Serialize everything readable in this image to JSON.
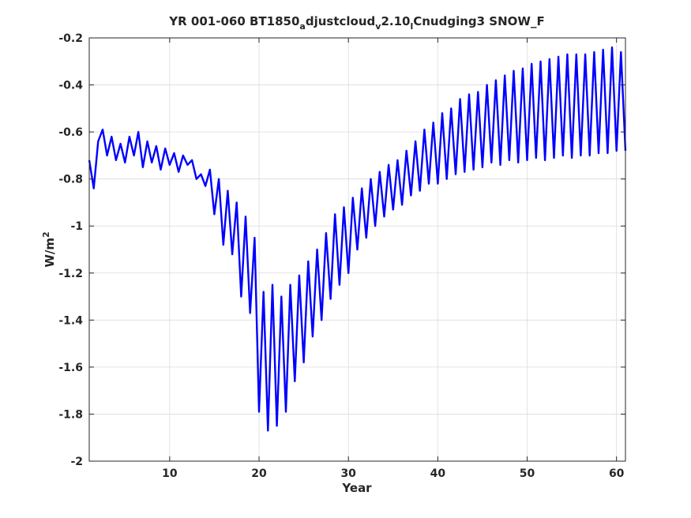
{
  "chart_data": {
    "type": "line",
    "title_parts": [
      "YR 001-060 BT1850",
      "a",
      "djustcloud",
      "v",
      "2.10",
      "l",
      "Cnudging3 SNOW_F"
    ],
    "xlabel": "Year",
    "ylabel_parts": [
      "W/m",
      "2"
    ],
    "xlim": [
      1,
      61
    ],
    "ylim": [
      -2,
      -0.2
    ],
    "xticks": [
      10,
      20,
      30,
      40,
      50,
      60
    ],
    "yticks": [
      -2,
      -1.8,
      -1.6,
      -1.4,
      -1.2,
      -1,
      -0.8,
      -0.6,
      -0.4,
      -0.2
    ],
    "grid": true,
    "series_color": "#0000ff",
    "series": [
      {
        "x": [
          1.0,
          1.5,
          2.0,
          2.5,
          3.0,
          3.5,
          4.0,
          4.5,
          5.0,
          5.5,
          6.0,
          6.5,
          7.0,
          7.5,
          8.0,
          8.5,
          9.0,
          9.5,
          10.0,
          10.5,
          11.0,
          11.5,
          12.0,
          12.5,
          13.0,
          13.5,
          14.0,
          14.5,
          15.0,
          15.5,
          16.0,
          16.5,
          17.0,
          17.5,
          18.0,
          18.5,
          19.0,
          19.5,
          20.0,
          20.5,
          21.0,
          21.5,
          22.0,
          22.5,
          23.0,
          23.5,
          24.0,
          24.5,
          25.0,
          25.5,
          26.0,
          26.5,
          27.0,
          27.5,
          28.0,
          28.5,
          29.0,
          29.5,
          30.0,
          30.5,
          31.0,
          31.5,
          32.0,
          32.5,
          33.0,
          33.5,
          34.0,
          34.5,
          35.0,
          35.5,
          36.0,
          36.5,
          37.0,
          37.5,
          38.0,
          38.5,
          39.0,
          39.5,
          40.0,
          40.5,
          41.0,
          41.5,
          42.0,
          42.5,
          43.0,
          43.5,
          44.0,
          44.5,
          45.0,
          45.5,
          46.0,
          46.5,
          47.0,
          47.5,
          48.0,
          48.5,
          49.0,
          49.5,
          50.0,
          50.5,
          51.0,
          51.5,
          52.0,
          52.5,
          53.0,
          53.5,
          54.0,
          54.5,
          55.0,
          55.5,
          56.0,
          56.5,
          57.0,
          57.5,
          58.0,
          58.5,
          59.0,
          59.5,
          60.0,
          60.5,
          61.0
        ],
        "y": [
          -0.72,
          -0.84,
          -0.64,
          -0.59,
          -0.7,
          -0.62,
          -0.72,
          -0.65,
          -0.73,
          -0.62,
          -0.7,
          -0.6,
          -0.75,
          -0.64,
          -0.73,
          -0.66,
          -0.76,
          -0.67,
          -0.74,
          -0.69,
          -0.77,
          -0.7,
          -0.74,
          -0.72,
          -0.8,
          -0.78,
          -0.83,
          -0.76,
          -0.95,
          -0.8,
          -1.08,
          -0.85,
          -1.12,
          -0.9,
          -1.3,
          -0.96,
          -1.37,
          -1.05,
          -1.79,
          -1.28,
          -1.87,
          -1.25,
          -1.85,
          -1.3,
          -1.79,
          -1.25,
          -1.66,
          -1.21,
          -1.58,
          -1.15,
          -1.47,
          -1.1,
          -1.4,
          -1.03,
          -1.31,
          -0.95,
          -1.25,
          -0.92,
          -1.2,
          -0.88,
          -1.1,
          -0.84,
          -1.05,
          -0.8,
          -1.0,
          -0.77,
          -0.96,
          -0.74,
          -0.93,
          -0.72,
          -0.91,
          -0.68,
          -0.87,
          -0.64,
          -0.85,
          -0.59,
          -0.82,
          -0.56,
          -0.82,
          -0.52,
          -0.8,
          -0.5,
          -0.78,
          -0.46,
          -0.77,
          -0.44,
          -0.76,
          -0.43,
          -0.75,
          -0.4,
          -0.73,
          -0.38,
          -0.74,
          -0.36,
          -0.72,
          -0.34,
          -0.73,
          -0.33,
          -0.72,
          -0.31,
          -0.71,
          -0.3,
          -0.72,
          -0.29,
          -0.71,
          -0.28,
          -0.7,
          -0.27,
          -0.71,
          -0.27,
          -0.7,
          -0.27,
          -0.7,
          -0.26,
          -0.69,
          -0.25,
          -0.69,
          -0.24,
          -0.68,
          -0.26,
          -0.68
        ]
      }
    ]
  }
}
